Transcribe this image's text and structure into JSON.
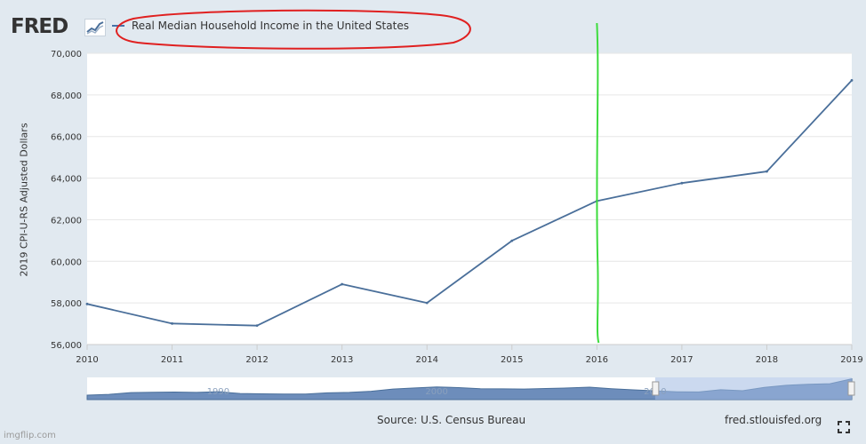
{
  "header": {
    "logo_text": "FRED",
    "legend_label": "Real Median Household Income in the United States"
  },
  "chart_data": {
    "type": "line",
    "title": "Real Median Household Income in the United States",
    "ylabel": "2019 CPI-U-RS Adjusted Dollars",
    "xlabel": "",
    "x": [
      2010,
      2011,
      2012,
      2013,
      2014,
      2015,
      2016,
      2017,
      2018,
      2019
    ],
    "series": [
      {
        "name": "Real Median Household Income in the United States",
        "color": "#4a6f9a",
        "values": [
          57950,
          57010,
          56910,
          58900,
          58000,
          60990,
          62900,
          63760,
          64320,
          68700
        ]
      }
    ],
    "xlim": [
      2010,
      2019
    ],
    "ylim": [
      56000,
      70000
    ],
    "yticks": [
      "56,000",
      "58,000",
      "60,000",
      "62,000",
      "64,000",
      "66,000",
      "68,000",
      "70,000"
    ],
    "xticks": [
      "2010",
      "2011",
      "2012",
      "2013",
      "2014",
      "2015",
      "2016",
      "2017",
      "2018",
      "2019"
    ],
    "grid": true,
    "annotations": {
      "circle_color": "#e02020",
      "vertical_marker_x": 2016,
      "vertical_marker_color": "#3ddc3d"
    },
    "navigator": {
      "labels": [
        "1990",
        "2000",
        "2010"
      ],
      "start_year": 1984,
      "end_year": 2019,
      "selected_from": 2010,
      "selected_to": 2019,
      "values": [
        54000,
        54700,
        56300,
        56600,
        56800,
        56500,
        57100,
        55500,
        55200,
        55000,
        55000,
        56100,
        56500,
        57500,
        59500,
        60500,
        61400,
        60800,
        59800,
        59700,
        59500,
        60000,
        60500,
        61200,
        59800,
        58800,
        57950,
        57010,
        56910,
        58900,
        58000,
        60990,
        62900,
        63760,
        64320,
        68700
      ]
    }
  },
  "footer": {
    "source": "Source: U.S. Census Bureau",
    "site": "fred.stlouisfed.org",
    "watermark": "imgflip.com"
  },
  "colors": {
    "background": "#e1e9f0",
    "plot_bg": "#ffffff",
    "line": "#4a6f9a"
  }
}
